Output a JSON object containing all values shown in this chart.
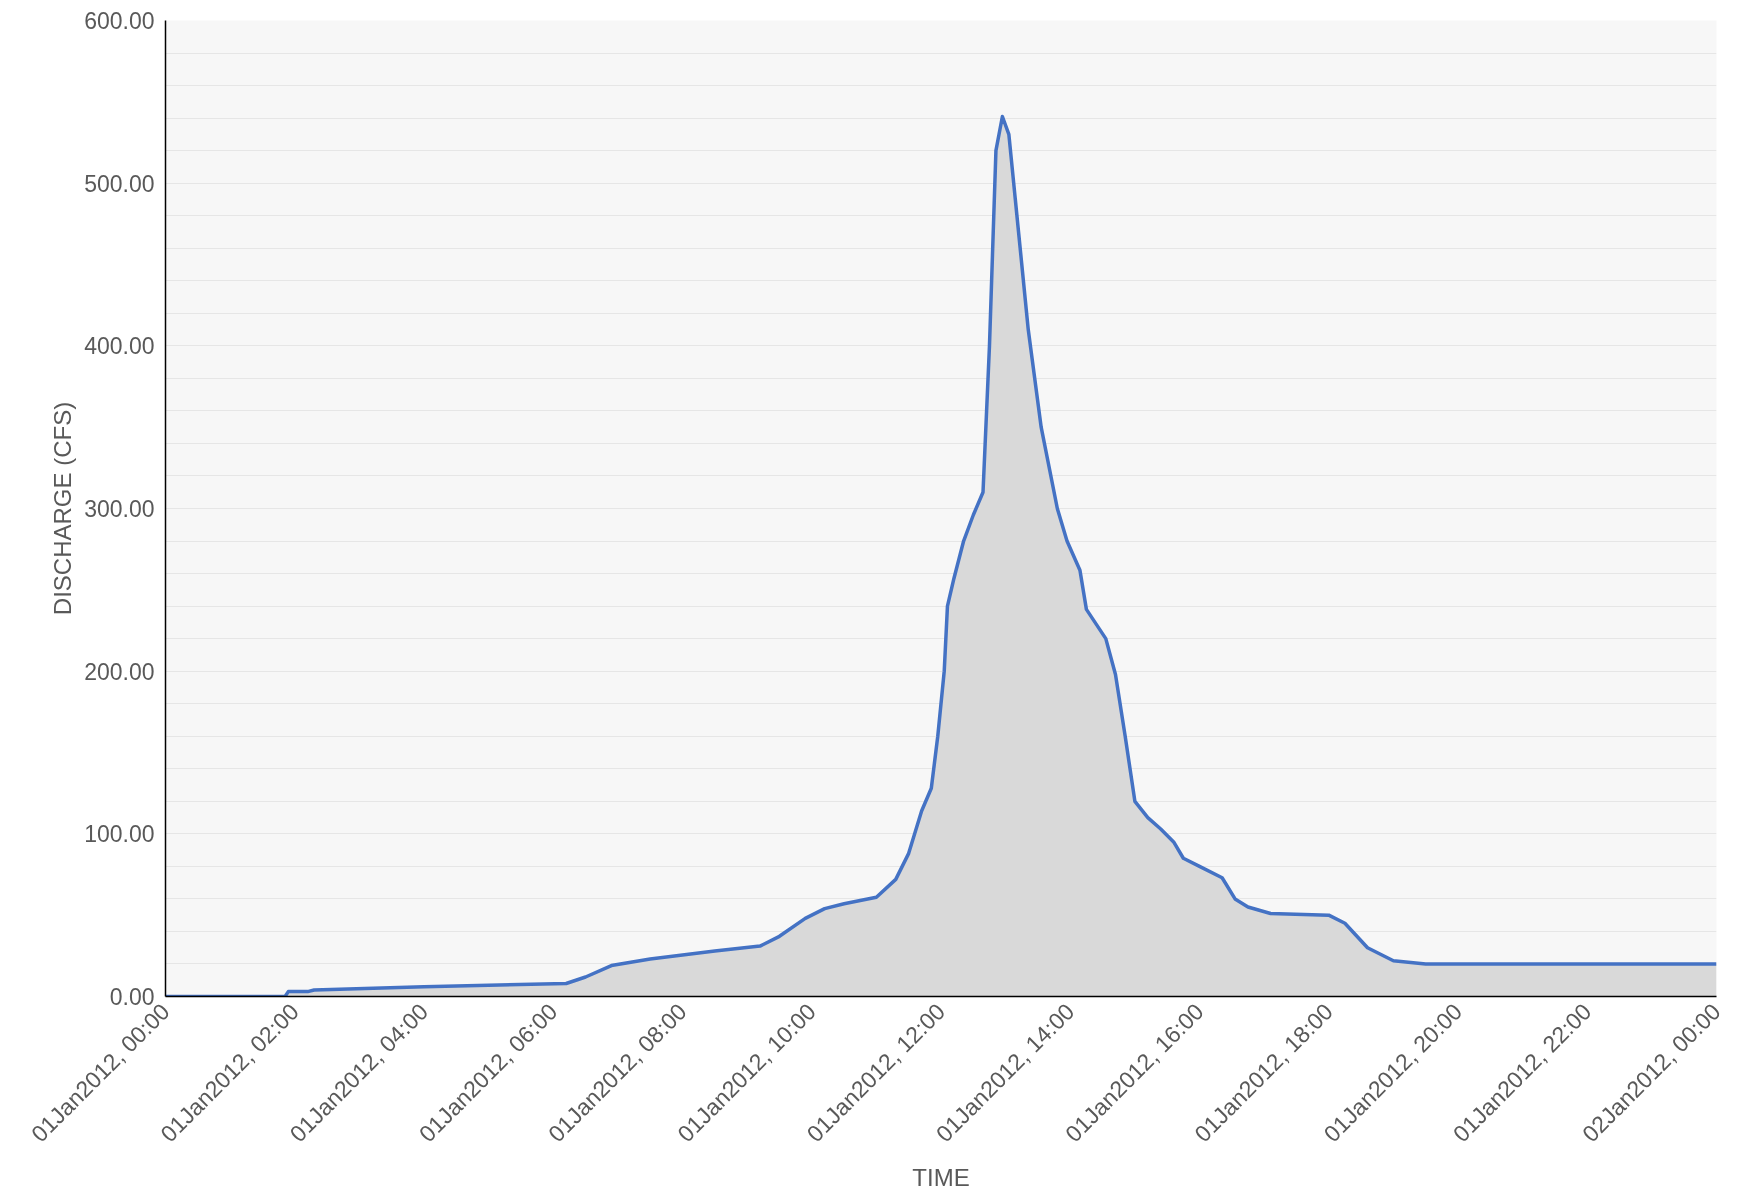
{
  "chart_data": {
    "type": "area",
    "xlabel": "TIME",
    "ylabel": "DISCHARGE (CFS)",
    "x": [
      "2012-01-01T00:00",
      "2012-01-01T01:51",
      "2012-01-01T01:54",
      "2012-01-01T02:12",
      "2012-01-01T02:18",
      "2012-01-01T04:00",
      "2012-01-01T06:12",
      "2012-01-01T06:30",
      "2012-01-01T06:54",
      "2012-01-01T07:30",
      "2012-01-01T08:30",
      "2012-01-01T09:12",
      "2012-01-01T09:30",
      "2012-01-01T09:54",
      "2012-01-01T10:12",
      "2012-01-01T10:30",
      "2012-01-01T11:00",
      "2012-01-01T11:18",
      "2012-01-01T11:30",
      "2012-01-01T11:42",
      "2012-01-01T11:51",
      "2012-01-01T11:57",
      "2012-01-01T12:03",
      "2012-01-01T12:06",
      "2012-01-01T12:12",
      "2012-01-01T12:21",
      "2012-01-01T12:30",
      "2012-01-01T12:39",
      "2012-01-01T12:45",
      "2012-01-01T12:51",
      "2012-01-01T12:57",
      "2012-01-01T13:03",
      "2012-01-01T13:12",
      "2012-01-01T13:21",
      "2012-01-01T13:33",
      "2012-01-01T13:48",
      "2012-01-01T13:57",
      "2012-01-01T14:09",
      "2012-01-01T14:15",
      "2012-01-01T14:33",
      "2012-01-01T14:42",
      "2012-01-01T14:51",
      "2012-01-01T15:00",
      "2012-01-01T15:12",
      "2012-01-01T15:24",
      "2012-01-01T15:36",
      "2012-01-01T15:45",
      "2012-01-01T16:00",
      "2012-01-01T16:21",
      "2012-01-01T16:33",
      "2012-01-01T16:45",
      "2012-01-01T17:06",
      "2012-01-01T18:00",
      "2012-01-01T18:15",
      "2012-01-01T18:36",
      "2012-01-01T19:00",
      "2012-01-01T19:30",
      "2012-01-02T00:00"
    ],
    "series": [
      {
        "color": "#4472c4",
        "values": [
          0,
          0,
          3,
          3,
          4,
          6,
          8,
          12,
          19,
          23,
          28,
          31,
          37,
          48,
          54,
          57,
          61,
          72,
          88,
          114,
          128,
          160,
          200,
          240,
          257,
          280,
          296,
          310,
          400,
          520,
          541,
          530,
          470,
          410,
          350,
          300,
          280,
          262,
          238,
          220,
          198,
          160,
          120,
          110,
          103,
          95,
          85,
          80,
          73,
          60,
          55,
          51,
          50,
          45,
          30,
          22,
          20,
          20
        ]
      }
    ],
    "xlim": [
      "2012-01-01T00:00",
      "2012-01-02T00:00"
    ],
    "xticks": [
      {
        "value": "2012-01-01T00:00",
        "label": "01Jan2012, 00:00"
      },
      {
        "value": "2012-01-01T02:00",
        "label": "01Jan2012, 02:00"
      },
      {
        "value": "2012-01-01T04:00",
        "label": "01Jan2012, 04:00"
      },
      {
        "value": "2012-01-01T06:00",
        "label": "01Jan2012, 06:00"
      },
      {
        "value": "2012-01-01T08:00",
        "label": "01Jan2012, 08:00"
      },
      {
        "value": "2012-01-01T10:00",
        "label": "01Jan2012, 10:00"
      },
      {
        "value": "2012-01-01T12:00",
        "label": "01Jan2012, 12:00"
      },
      {
        "value": "2012-01-01T14:00",
        "label": "01Jan2012, 14:00"
      },
      {
        "value": "2012-01-01T16:00",
        "label": "01Jan2012, 16:00"
      },
      {
        "value": "2012-01-01T18:00",
        "label": "01Jan2012, 18:00"
      },
      {
        "value": "2012-01-01T20:00",
        "label": "01Jan2012, 20:00"
      },
      {
        "value": "2012-01-01T22:00",
        "label": "01Jan2012, 22:00"
      },
      {
        "value": "2012-01-02T00:00",
        "label": "02Jan2012, 00:00"
      }
    ],
    "ylim": [
      0,
      600
    ],
    "yticks": [
      {
        "value": 0,
        "label": "0.00"
      },
      {
        "value": 20,
        "label": null
      },
      {
        "value": 40,
        "label": null
      },
      {
        "value": 60,
        "label": null
      },
      {
        "value": 80,
        "label": null
      },
      {
        "value": 100,
        "label": "100.00"
      },
      {
        "value": 120,
        "label": null
      },
      {
        "value": 140,
        "label": null
      },
      {
        "value": 160,
        "label": null
      },
      {
        "value": 180,
        "label": null
      },
      {
        "value": 200,
        "label": "200.00"
      },
      {
        "value": 220,
        "label": null
      },
      {
        "value": 240,
        "label": null
      },
      {
        "value": 260,
        "label": null
      },
      {
        "value": 280,
        "label": null
      },
      {
        "value": 300,
        "label": "300.00"
      },
      {
        "value": 320,
        "label": null
      },
      {
        "value": 340,
        "label": null
      },
      {
        "value": 360,
        "label": null
      },
      {
        "value": 380,
        "label": null
      },
      {
        "value": 400,
        "label": "400.00"
      },
      {
        "value": 420,
        "label": null
      },
      {
        "value": 440,
        "label": null
      },
      {
        "value": 460,
        "label": null
      },
      {
        "value": 480,
        "label": null
      },
      {
        "value": 500,
        "label": "500.00"
      },
      {
        "value": 520,
        "label": null
      },
      {
        "value": 540,
        "label": null
      },
      {
        "value": 560,
        "label": null
      },
      {
        "value": 580,
        "label": null
      },
      {
        "value": 600,
        "label": "600.00"
      }
    ],
    "grid": "y"
  }
}
